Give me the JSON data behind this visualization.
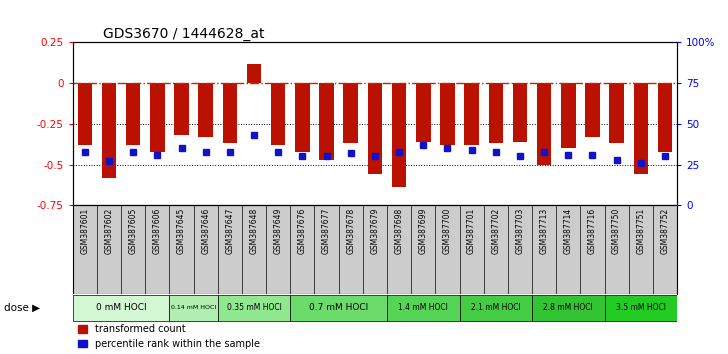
{
  "title": "GDS3670 / 1444628_at",
  "samples": [
    "GSM387601",
    "GSM387602",
    "GSM387605",
    "GSM387606",
    "GSM387645",
    "GSM387646",
    "GSM387647",
    "GSM387648",
    "GSM387649",
    "GSM387676",
    "GSM387677",
    "GSM387678",
    "GSM387679",
    "GSM387698",
    "GSM387699",
    "GSM387700",
    "GSM387701",
    "GSM387702",
    "GSM387703",
    "GSM387713",
    "GSM387714",
    "GSM387716",
    "GSM387750",
    "GSM387751",
    "GSM387752"
  ],
  "red_values": [
    -0.38,
    -0.58,
    -0.38,
    -0.42,
    -0.32,
    -0.33,
    -0.37,
    0.12,
    -0.38,
    -0.42,
    -0.47,
    -0.37,
    -0.56,
    -0.64,
    -0.36,
    -0.38,
    -0.38,
    -0.37,
    -0.36,
    -0.5,
    -0.4,
    -0.33,
    -0.37,
    -0.56,
    -0.42
  ],
  "blue_pct": [
    33,
    27,
    33,
    31,
    35,
    33,
    33,
    43,
    33,
    30,
    30,
    32,
    30,
    33,
    37,
    35,
    34,
    33,
    30,
    33,
    31,
    31,
    28,
    26,
    30
  ],
  "dose_groups": [
    {
      "label": "0 mM HOCl",
      "start": 0,
      "end": 4,
      "color": "#d4f7d4"
    },
    {
      "label": "0.14 mM HOCl",
      "start": 4,
      "end": 6,
      "color": "#b0efb0"
    },
    {
      "label": "0.35 mM HOCl",
      "start": 6,
      "end": 9,
      "color": "#90e890"
    },
    {
      "label": "0.7 mM HOCl",
      "start": 9,
      "end": 13,
      "color": "#6bdc6b"
    },
    {
      "label": "1.4 mM HOCl",
      "start": 13,
      "end": 16,
      "color": "#55d455"
    },
    {
      "label": "2.1 mM HOCl",
      "start": 16,
      "end": 19,
      "color": "#44cc44"
    },
    {
      "label": "2.8 mM HOCl",
      "start": 19,
      "end": 22,
      "color": "#33c433"
    },
    {
      "label": "3.5 mM HOCl",
      "start": 22,
      "end": 25,
      "color": "#22cc22"
    }
  ],
  "ylim_left": [
    -0.75,
    0.25
  ],
  "ylim_right": [
    0,
    100
  ],
  "bar_color": "#bb1100",
  "dot_color": "#1111cc",
  "hline_color": "#cc2200",
  "label_bg": "#cccccc"
}
